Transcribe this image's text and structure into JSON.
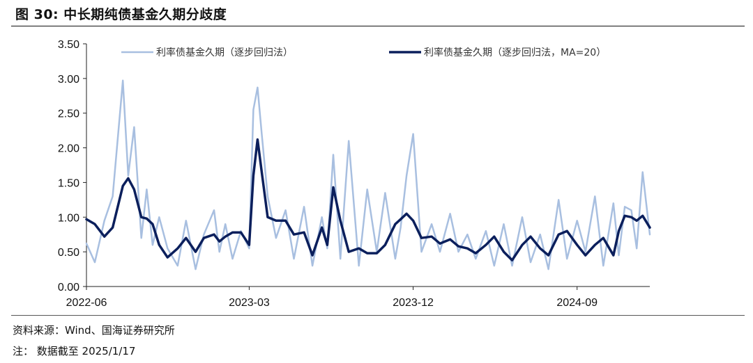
{
  "figure": {
    "title": "图 30:  中长期纯债基金久期分歧度",
    "source": "资料来源：Wind、国海证券研究所",
    "note": "注：  数据截至 2025/1/17"
  },
  "chart_data": {
    "type": "line",
    "x_tick_labels": [
      "2022-06",
      "2023-03",
      "2023-12",
      "2024-09"
    ],
    "x_range": [
      "2022-06",
      "2025-01"
    ],
    "y_ticks": [
      "0.00",
      "0.50",
      "1.00",
      "1.50",
      "2.00",
      "2.50",
      "3.00",
      "3.50"
    ],
    "ylim": [
      0,
      3.5
    ],
    "grid": false,
    "legend_position": "top",
    "series": [
      {
        "name": "利率债基金久期（逐步回归法）",
        "color": "#a8bfe0",
        "x": [
          "2022-06",
          "2022-06-15",
          "2022-07",
          "2022-07-15",
          "2022-08",
          "2022-08-10",
          "2022-08-20",
          "2022-09",
          "2022-09-10",
          "2022-09-20",
          "2022-10",
          "2022-10-15",
          "2022-11",
          "2022-11-15",
          "2022-12",
          "2022-12-15",
          "2023-01",
          "2023-01-10",
          "2023-01-20",
          "2023-02",
          "2023-02-15",
          "2023-03",
          "2023-03-08",
          "2023-03-15",
          "2023-03-22",
          "2023-04",
          "2023-04-15",
          "2023-05",
          "2023-05-15",
          "2023-06",
          "2023-06-15",
          "2023-07",
          "2023-07-10",
          "2023-07-20",
          "2023-08",
          "2023-08-15",
          "2023-09",
          "2023-09-15",
          "2023-10",
          "2023-10-15",
          "2023-11",
          "2023-11-10",
          "2023-11-20",
          "2023-12",
          "2023-12-15",
          "2024-01",
          "2024-01-15",
          "2024-02",
          "2024-02-15",
          "2024-03",
          "2024-03-15",
          "2024-04",
          "2024-04-15",
          "2024-05",
          "2024-05-15",
          "2024-06",
          "2024-06-15",
          "2024-07",
          "2024-07-15",
          "2024-08",
          "2024-08-15",
          "2024-09",
          "2024-09-15",
          "2024-10",
          "2024-10-15",
          "2024-11",
          "2024-11-10",
          "2024-11-20",
          "2024-12",
          "2024-12-10",
          "2024-12-20",
          "2025-01"
        ],
        "values": [
          0.62,
          0.35,
          0.95,
          1.3,
          2.97,
          1.6,
          2.3,
          0.7,
          1.4,
          0.6,
          1.0,
          0.55,
          0.3,
          0.95,
          0.25,
          0.75,
          1.1,
          0.5,
          0.9,
          0.4,
          0.8,
          0.55,
          2.55,
          2.87,
          2.2,
          1.3,
          0.7,
          1.1,
          0.4,
          1.15,
          0.3,
          1.0,
          0.55,
          1.9,
          0.4,
          2.1,
          0.3,
          1.4,
          0.5,
          1.35,
          0.4,
          0.85,
          1.6,
          2.2,
          0.5,
          0.9,
          0.5,
          1.05,
          0.5,
          0.75,
          0.4,
          0.8,
          0.3,
          0.9,
          0.3,
          1.0,
          0.35,
          0.75,
          0.25,
          1.25,
          0.4,
          0.95,
          0.5,
          1.3,
          0.3,
          1.2,
          0.45,
          1.15,
          1.1,
          0.55,
          1.65,
          0.75
        ]
      },
      {
        "name": "利率债基金久期（逐步回归法，MA=20）",
        "color": "#0b1f5c",
        "x": [
          "2022-06",
          "2022-06-15",
          "2022-07",
          "2022-07-15",
          "2022-08",
          "2022-08-10",
          "2022-08-20",
          "2022-09",
          "2022-09-10",
          "2022-09-20",
          "2022-10",
          "2022-10-15",
          "2022-11",
          "2022-11-15",
          "2022-12",
          "2022-12-15",
          "2023-01",
          "2023-01-10",
          "2023-01-20",
          "2023-02",
          "2023-02-15",
          "2023-03",
          "2023-03-08",
          "2023-03-15",
          "2023-03-22",
          "2023-04",
          "2023-04-15",
          "2023-05",
          "2023-05-15",
          "2023-06",
          "2023-06-15",
          "2023-07",
          "2023-07-10",
          "2023-07-20",
          "2023-08",
          "2023-08-15",
          "2023-09",
          "2023-09-15",
          "2023-10",
          "2023-10-15",
          "2023-11",
          "2023-11-10",
          "2023-11-20",
          "2023-12",
          "2023-12-15",
          "2024-01",
          "2024-01-15",
          "2024-02",
          "2024-02-15",
          "2024-03",
          "2024-03-15",
          "2024-04",
          "2024-04-15",
          "2024-05",
          "2024-05-15",
          "2024-06",
          "2024-06-15",
          "2024-07",
          "2024-07-15",
          "2024-08",
          "2024-08-15",
          "2024-09",
          "2024-09-15",
          "2024-10",
          "2024-10-15",
          "2024-11",
          "2024-11-10",
          "2024-11-20",
          "2024-12",
          "2024-12-10",
          "2024-12-20",
          "2025-01"
        ],
        "values": [
          0.97,
          0.9,
          0.72,
          0.85,
          1.45,
          1.56,
          1.4,
          1.0,
          0.98,
          0.9,
          0.6,
          0.42,
          0.55,
          0.7,
          0.5,
          0.7,
          0.75,
          0.65,
          0.72,
          0.78,
          0.78,
          0.6,
          1.6,
          2.12,
          1.65,
          1.0,
          0.95,
          0.95,
          0.75,
          0.78,
          0.45,
          0.85,
          0.6,
          1.43,
          0.95,
          0.5,
          0.55,
          0.48,
          0.48,
          0.6,
          0.9,
          0.97,
          1.05,
          0.95,
          0.7,
          0.72,
          0.62,
          0.68,
          0.58,
          0.55,
          0.48,
          0.6,
          0.72,
          0.5,
          0.38,
          0.6,
          0.72,
          0.55,
          0.45,
          0.75,
          0.8,
          0.6,
          0.45,
          0.6,
          0.7,
          0.45,
          0.8,
          1.02,
          1.0,
          0.95,
          1.02,
          0.85
        ]
      }
    ]
  }
}
